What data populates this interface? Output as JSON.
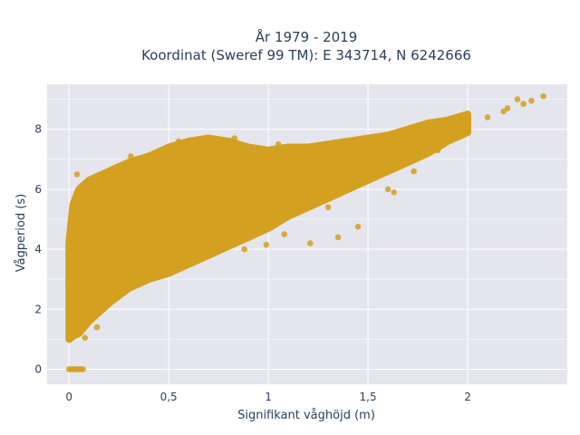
{
  "chart_data": {
    "type": "scatter",
    "title_lines": [
      "År 1979 - 2019",
      "Koordinat (Sweref 99 TM): E 343714, N 6242666"
    ],
    "xlabel": "Signifikant våghöjd (m)",
    "ylabel": "Vågperiod (s)",
    "xlim": [
      -0.11,
      2.5
    ],
    "ylim": [
      -0.5,
      9.5
    ],
    "xticks": [
      {
        "value": 0,
        "label": "0"
      },
      {
        "value": 0.5,
        "label": "0,5"
      },
      {
        "value": 1,
        "label": "1"
      },
      {
        "value": 1.5,
        "label": "1,5"
      },
      {
        "value": 2,
        "label": "2"
      }
    ],
    "yticks": [
      {
        "value": 0,
        "label": "0"
      },
      {
        "value": 2,
        "label": "2"
      },
      {
        "value": 4,
        "label": "4"
      },
      {
        "value": 6,
        "label": "6"
      },
      {
        "value": 8,
        "label": "8"
      }
    ],
    "grid": true,
    "legend": "none",
    "marker_color": "#d4a020",
    "background_color": "#e5e5ee",
    "point_cloud_envelope": {
      "x": [
        0.0,
        0.02,
        0.05,
        0.1,
        0.2,
        0.3,
        0.4,
        0.5,
        0.6,
        0.7,
        0.8,
        0.9,
        1.0,
        1.1,
        1.2,
        1.3,
        1.4,
        1.5,
        1.6,
        1.7,
        1.8,
        1.9,
        2.0
      ],
      "y_low": [
        1.0,
        1.1,
        1.2,
        1.6,
        2.2,
        2.7,
        3.0,
        3.2,
        3.5,
        3.8,
        4.1,
        4.4,
        4.7,
        5.1,
        5.4,
        5.7,
        6.0,
        6.3,
        6.6,
        6.9,
        7.2,
        7.6,
        7.9
      ],
      "y_high": [
        4.2,
        5.5,
        6.0,
        6.3,
        6.6,
        6.9,
        7.1,
        7.4,
        7.6,
        7.7,
        7.6,
        7.4,
        7.3,
        7.4,
        7.4,
        7.5,
        7.6,
        7.7,
        7.8,
        8.0,
        8.2,
        8.3,
        8.5
      ]
    },
    "points": [
      {
        "x": 0.0,
        "y": 0.0
      },
      {
        "x": 0.01,
        "y": 0.0
      },
      {
        "x": 0.02,
        "y": 0.0
      },
      {
        "x": 0.03,
        "y": 0.0
      },
      {
        "x": 0.04,
        "y": 0.0
      },
      {
        "x": 0.05,
        "y": 0.0
      },
      {
        "x": 0.06,
        "y": 0.0
      },
      {
        "x": 0.07,
        "y": 0.0
      },
      {
        "x": 0.0,
        "y": 4.1
      },
      {
        "x": 0.0,
        "y": 2.9
      },
      {
        "x": 0.04,
        "y": 6.5
      },
      {
        "x": 0.03,
        "y": 5.6
      },
      {
        "x": 0.07,
        "y": 6.1
      },
      {
        "x": 0.02,
        "y": 1.15
      },
      {
        "x": 0.08,
        "y": 1.05
      },
      {
        "x": 0.14,
        "y": 1.4
      },
      {
        "x": 0.31,
        "y": 7.1
      },
      {
        "x": 0.55,
        "y": 7.6
      },
      {
        "x": 0.66,
        "y": 7.6
      },
      {
        "x": 0.83,
        "y": 7.7
      },
      {
        "x": 0.96,
        "y": 7.35
      },
      {
        "x": 1.05,
        "y": 7.5
      },
      {
        "x": 0.88,
        "y": 4.0
      },
      {
        "x": 0.99,
        "y": 4.15
      },
      {
        "x": 1.08,
        "y": 4.5
      },
      {
        "x": 1.21,
        "y": 4.2
      },
      {
        "x": 1.35,
        "y": 4.4
      },
      {
        "x": 1.3,
        "y": 5.4
      },
      {
        "x": 1.45,
        "y": 4.75
      },
      {
        "x": 1.6,
        "y": 6.0
      },
      {
        "x": 1.63,
        "y": 5.9
      },
      {
        "x": 1.73,
        "y": 6.6
      },
      {
        "x": 1.85,
        "y": 7.3
      },
      {
        "x": 1.92,
        "y": 7.7
      },
      {
        "x": 2.0,
        "y": 8.0
      },
      {
        "x": 2.1,
        "y": 8.4
      },
      {
        "x": 2.2,
        "y": 8.7
      },
      {
        "x": 2.28,
        "y": 8.85
      },
      {
        "x": 2.38,
        "y": 9.1
      },
      {
        "x": 2.25,
        "y": 9.0
      },
      {
        "x": 2.32,
        "y": 8.95
      },
      {
        "x": 2.18,
        "y": 8.6
      },
      {
        "x": 1.95,
        "y": 8.3
      },
      {
        "x": 1.98,
        "y": 8.1
      }
    ]
  }
}
